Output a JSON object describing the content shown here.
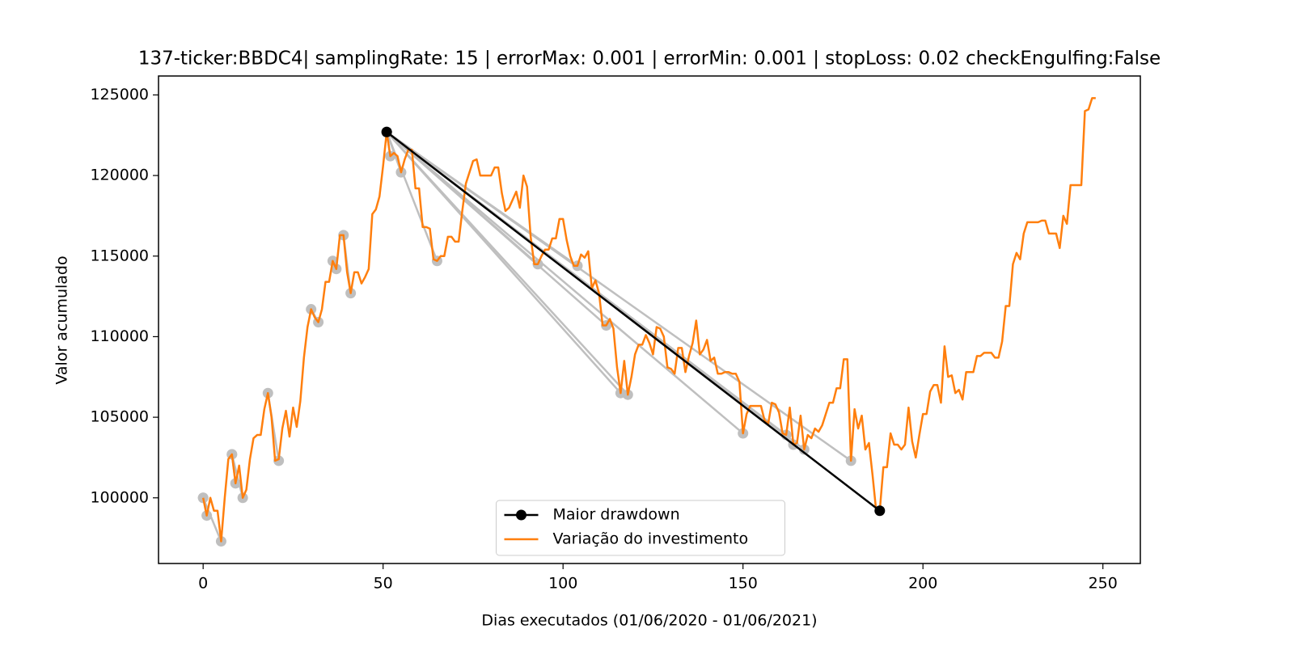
{
  "chart_data": {
    "type": "line",
    "title": "137-ticker:BBDC4| samplingRate: 15 | errorMax: 0.001 | errorMin: 0.001 | stopLoss: 0.02 checkEngulfing:False",
    "x_label": "Dias executados (01/06/2020 - 01/06/2021)",
    "y_label": "Valor acumulado",
    "xlim": [
      -12.4,
      260.4
    ],
    "xticks": [
      0,
      50,
      100,
      150,
      200,
      250
    ],
    "ylim": [
      95925,
      126175
    ],
    "yticks": [
      100000,
      105000,
      110000,
      115000,
      120000,
      125000
    ],
    "legend": "lower center",
    "drawdown_color": "#bfbfbf",
    "drawdown_segments": [
      {
        "x": [
          0,
          1
        ],
        "y": [
          100000,
          98900
        ]
      },
      {
        "x": [
          0,
          5
        ],
        "y": [
          100000,
          97300
        ]
      },
      {
        "x": [
          8,
          9
        ],
        "y": [
          102700,
          100900
        ]
      },
      {
        "x": [
          8,
          11
        ],
        "y": [
          102700,
          100000
        ]
      },
      {
        "x": [
          18,
          21
        ],
        "y": [
          106500,
          102300
        ]
      },
      {
        "x": [
          30,
          32
        ],
        "y": [
          111700,
          110900
        ]
      },
      {
        "x": [
          36,
          37
        ],
        "y": [
          114700,
          114200
        ]
      },
      {
        "x": [
          39,
          41
        ],
        "y": [
          116300,
          112700
        ]
      },
      {
        "x": [
          51,
          52
        ],
        "y": [
          122700,
          121200
        ]
      },
      {
        "x": [
          51,
          55
        ],
        "y": [
          122700,
          120200
        ]
      },
      {
        "x": [
          51,
          65
        ],
        "y": [
          122700,
          114700
        ]
      },
      {
        "x": [
          51,
          93
        ],
        "y": [
          122700,
          114500
        ]
      },
      {
        "x": [
          51,
          104
        ],
        "y": [
          122700,
          114400
        ]
      },
      {
        "x": [
          51,
          112
        ],
        "y": [
          122700,
          110700
        ]
      },
      {
        "x": [
          51,
          116
        ],
        "y": [
          122700,
          106500
        ]
      },
      {
        "x": [
          51,
          118
        ],
        "y": [
          122700,
          106400
        ]
      },
      {
        "x": [
          51,
          150
        ],
        "y": [
          122700,
          104000
        ]
      },
      {
        "x": [
          51,
          162
        ],
        "y": [
          122700,
          103900
        ]
      },
      {
        "x": [
          51,
          164
        ],
        "y": [
          122700,
          103300
        ]
      },
      {
        "x": [
          51,
          167
        ],
        "y": [
          122700,
          103000
        ]
      },
      {
        "x": [
          51,
          180
        ],
        "y": [
          122700,
          102300
        ]
      }
    ],
    "series": [
      {
        "name": "Maior drawdown",
        "color": "#000000",
        "marker": true,
        "x": [
          51,
          188
        ],
        "values": [
          122700,
          99200
        ]
      },
      {
        "name": "Variação do investimento",
        "color": "#ff7f0e",
        "marker": false,
        "x": [
          0,
          1,
          2,
          3,
          4,
          5,
          6,
          7,
          8,
          9,
          10,
          11,
          12,
          13,
          14,
          15,
          16,
          17,
          18,
          19,
          20,
          21,
          22,
          23,
          24,
          25,
          26,
          27,
          28,
          29,
          30,
          31,
          32,
          33,
          34,
          35,
          36,
          37,
          38,
          39,
          40,
          41,
          42,
          43,
          44,
          45,
          46,
          47,
          48,
          49,
          50,
          51,
          52,
          53,
          54,
          55,
          56,
          57,
          58,
          59,
          60,
          61,
          62,
          63,
          64,
          65,
          66,
          67,
          68,
          69,
          70,
          71,
          72,
          73,
          74,
          75,
          76,
          77,
          78,
          79,
          80,
          81,
          82,
          83,
          84,
          85,
          86,
          87,
          88,
          89,
          90,
          91,
          92,
          93,
          94,
          95,
          96,
          97,
          98,
          99,
          100,
          101,
          102,
          103,
          104,
          105,
          106,
          107,
          108,
          109,
          110,
          111,
          112,
          113,
          114,
          115,
          116,
          117,
          118,
          119,
          120,
          121,
          122,
          123,
          124,
          125,
          126,
          127,
          128,
          129,
          130,
          131,
          132,
          133,
          134,
          135,
          136,
          137,
          138,
          139,
          140,
          141,
          142,
          143,
          144,
          145,
          146,
          147,
          148,
          149,
          150,
          151,
          152,
          153,
          154,
          155,
          156,
          157,
          158,
          159,
          160,
          161,
          162,
          163,
          164,
          165,
          166,
          167,
          168,
          169,
          170,
          171,
          172,
          173,
          174,
          175,
          176,
          177,
          178,
          179,
          180,
          181,
          182,
          183,
          184,
          185,
          186,
          187,
          188,
          189,
          190,
          191,
          192,
          193,
          194,
          195,
          196,
          197,
          198,
          199,
          200,
          201,
          202,
          203,
          204,
          205,
          206,
          207,
          208,
          209,
          210,
          211,
          212,
          213,
          214,
          215,
          216,
          217,
          218,
          219,
          220,
          221,
          222,
          223,
          224,
          225,
          226,
          227,
          228,
          229,
          230,
          231,
          232,
          233,
          234,
          235,
          236,
          237,
          238,
          239,
          240,
          241,
          242,
          243,
          244,
          245,
          246,
          247,
          248
        ],
        "values": [
          100000,
          98900,
          100000,
          99200,
          99200,
          97300,
          100000,
          102400,
          102700,
          100900,
          102000,
          100000,
          100500,
          102400,
          103700,
          103900,
          103900,
          105500,
          106500,
          105000,
          102300,
          102400,
          104300,
          105400,
          103800,
          105600,
          104400,
          106000,
          108700,
          110600,
          111700,
          111200,
          110900,
          111700,
          113400,
          113400,
          114700,
          114200,
          116300,
          116300,
          114000,
          112700,
          114000,
          114000,
          113300,
          113700,
          114200,
          117600,
          117900,
          118700,
          120600,
          122700,
          121200,
          121400,
          121200,
          120200,
          121000,
          121600,
          121600,
          119200,
          119200,
          116800,
          116800,
          116700,
          114800,
          114700,
          115000,
          115000,
          116200,
          116200,
          115900,
          115900,
          117800,
          119500,
          120200,
          120900,
          121000,
          120000,
          120000,
          120000,
          120000,
          120500,
          120500,
          118900,
          117800,
          118000,
          118500,
          119000,
          118000,
          120000,
          119300,
          116200,
          114500,
          114500,
          115000,
          115400,
          115400,
          116100,
          116100,
          117300,
          117300,
          116000,
          115000,
          114400,
          114400,
          115100,
          114900,
          115300,
          113000,
          113500,
          112700,
          110700,
          110700,
          111100,
          110500,
          108100,
          106500,
          108500,
          106400,
          107500,
          108900,
          109500,
          109500,
          110100,
          109600,
          108900,
          110600,
          110500,
          110000,
          108100,
          108000,
          107700,
          109300,
          109300,
          107800,
          108800,
          109600,
          111000,
          108900,
          109200,
          109800,
          108500,
          108700,
          107700,
          107700,
          107800,
          107800,
          107700,
          107700,
          107200,
          104000,
          105200,
          105700,
          105700,
          105700,
          105700,
          104800,
          104600,
          105900,
          105800,
          105300,
          104000,
          103900,
          105600,
          103300,
          103400,
          105100,
          103000,
          103900,
          103700,
          104300,
          104100,
          104500,
          105200,
          105900,
          105900,
          106800,
          106800,
          108600,
          108600,
          102300,
          105500,
          104300,
          105100,
          103000,
          103400,
          101400,
          99200,
          99200,
          101900,
          101900,
          104000,
          103300,
          103300,
          103000,
          103300,
          105600,
          103500,
          102500,
          103900,
          105200,
          105200,
          106600,
          107000,
          107000,
          105900,
          109400,
          107500,
          107600,
          106500,
          106700,
          106100,
          107800,
          107800,
          107800,
          108800,
          108800,
          109000,
          109000,
          109000,
          108700,
          108700,
          109700,
          111900,
          111900,
          114500,
          115200,
          114800,
          116400,
          117100,
          117100,
          117100,
          117100,
          117200,
          117200,
          116400,
          116400,
          116400,
          115500,
          117500,
          117000,
          119400,
          119400,
          119400,
          119400,
          124000,
          124100,
          124800,
          124800
        ]
      }
    ]
  }
}
